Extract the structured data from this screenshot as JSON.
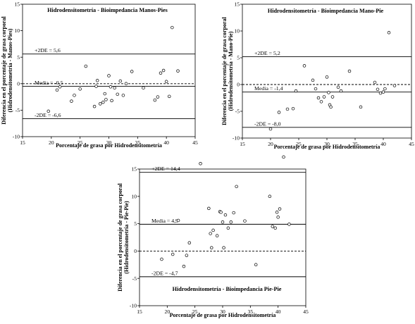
{
  "chart_data": [
    {
      "type": "scatter",
      "title": "Hidrodensitometría - Bioimpedancia Manos-Pies",
      "xlabel": "Porcentaje de grasa por Hidrodensitometría",
      "ylabel": "Diferencia en el porcentaje de grasa corporal",
      "ylabel_sub": "(Hidrodensitometría - Manos-Pies)",
      "xlim": [
        15,
        45
      ],
      "ylim": [
        -10,
        15
      ],
      "xticks": [
        "15",
        "20",
        "25",
        "30",
        "35",
        "40",
        "45"
      ],
      "yticks": [
        "-10",
        "-5",
        "0",
        "5",
        "10",
        "15"
      ],
      "lines": {
        "upper": 5.6,
        "mean": -0.5,
        "lower": -6.6,
        "zero": 0
      },
      "labels": {
        "upper": "+2DE = 5,6",
        "mean": "Media = -0,5",
        "lower": "-2DE = -6,6"
      },
      "points": [
        [
          19.5,
          -5.2
        ],
        [
          21,
          -1.2
        ],
        [
          21.5,
          -0.6
        ],
        [
          23.5,
          -3.3
        ],
        [
          24,
          -2.2
        ],
        [
          25,
          -1
        ],
        [
          26,
          3.3
        ],
        [
          27.5,
          -4.3
        ],
        [
          27.8,
          -0.5
        ],
        [
          28,
          0.6
        ],
        [
          28.5,
          -3.8
        ],
        [
          29,
          -3.5
        ],
        [
          29.3,
          -1.9
        ],
        [
          29.5,
          -3
        ],
        [
          30,
          1.5
        ],
        [
          30.3,
          -0.6
        ],
        [
          30.5,
          -3.2
        ],
        [
          31,
          -0.8
        ],
        [
          31.5,
          -2
        ],
        [
          32,
          0.5
        ],
        [
          32.5,
          -2.2
        ],
        [
          33,
          0
        ],
        [
          34,
          2.3
        ],
        [
          36,
          -0.8
        ],
        [
          38,
          -3.1
        ],
        [
          38.5,
          -2.5
        ],
        [
          39,
          2
        ],
        [
          39.5,
          2.5
        ],
        [
          40,
          0.4
        ],
        [
          40.5,
          -2.4
        ],
        [
          41,
          10.6
        ],
        [
          42,
          2.4
        ]
      ]
    },
    {
      "type": "scatter",
      "title": "Hidrodensitometría - Bioimpedancia Mano-Pie",
      "xlabel": "Porcentaje de grasa por Hidrodensitometría",
      "ylabel": "Diferencia en el porcentaje de grasa corporal",
      "ylabel_sub": "(Hidrodensitometría - Mano-Pie)",
      "xlim": [
        15,
        45
      ],
      "ylim": [
        -10,
        15
      ],
      "xticks": [
        "15",
        "20",
        "25",
        "30",
        "35",
        "40",
        "45"
      ],
      "yticks": [
        "-10",
        "-5",
        "0",
        "5",
        "10",
        "15"
      ],
      "lines": {
        "upper": 5.2,
        "mean": -1.4,
        "lower": -8.0,
        "zero": 0
      },
      "labels": {
        "upper": "+2DE = 5,2",
        "mean": "Media = -1,4",
        "lower": "-2DE = -8,0"
      },
      "points": [
        [
          20,
          -8.3
        ],
        [
          21.5,
          -5.2
        ],
        [
          23,
          -4.6
        ],
        [
          24,
          -4.5
        ],
        [
          24.5,
          -1.2
        ],
        [
          26,
          3.5
        ],
        [
          27.5,
          0.8
        ],
        [
          28,
          -0.8
        ],
        [
          28.5,
          -2.5
        ],
        [
          29,
          -3.2
        ],
        [
          29.5,
          -2.3
        ],
        [
          30,
          1.4
        ],
        [
          30.3,
          -1.5
        ],
        [
          30.5,
          -3.8
        ],
        [
          30.7,
          -4.2
        ],
        [
          31,
          -2.3
        ],
        [
          32,
          -0.5
        ],
        [
          32.5,
          -1.2
        ],
        [
          34,
          2.5
        ],
        [
          36,
          -4.2
        ],
        [
          38.5,
          0.4
        ],
        [
          39,
          -0.9
        ],
        [
          39.5,
          -1.6
        ],
        [
          40,
          -1.4
        ],
        [
          40.3,
          -0.8
        ],
        [
          41,
          9.7
        ],
        [
          42,
          -0.2
        ]
      ]
    },
    {
      "type": "scatter",
      "title": "Hidrodensitometría - Bioimpedancia Pie-Pie",
      "xlabel": "Porcentaje de grasa por Hidrodensitometría",
      "ylabel": "Diferencia en el porcentaje de grasa corporal",
      "ylabel_sub": "(Hidrodensitometría - Pie-Pie)",
      "xlim": [
        15,
        45
      ],
      "ylim": [
        -10,
        15
      ],
      "xticks": [
        "15",
        "20",
        "25",
        "30",
        "35",
        "40",
        "45"
      ],
      "yticks": [
        "-10",
        "-5",
        "0",
        "5",
        "10",
        "15"
      ],
      "lines": {
        "upper": 14.4,
        "mean": 4.9,
        "lower": -4.7,
        "zero": 0
      },
      "labels": {
        "upper": "+2DE = 14,4",
        "mean": "Media = 4,9",
        "lower": "-2DE = -4,7"
      },
      "points": [
        [
          19,
          -1.5
        ],
        [
          21,
          -0.6
        ],
        [
          22,
          5.6
        ],
        [
          23,
          -2.8
        ],
        [
          23.5,
          -0.8
        ],
        [
          24,
          1.5
        ],
        [
          26,
          16
        ],
        [
          27.5,
          7.8
        ],
        [
          27.8,
          3.2
        ],
        [
          28,
          0.6
        ],
        [
          28.3,
          3.8
        ],
        [
          29,
          2.8
        ],
        [
          29.5,
          7.2
        ],
        [
          29.7,
          7.1
        ],
        [
          30,
          5.3
        ],
        [
          30.2,
          0.6
        ],
        [
          30.5,
          6.6
        ],
        [
          31,
          4.2
        ],
        [
          31.5,
          5.3
        ],
        [
          32,
          7
        ],
        [
          32.5,
          11.8
        ],
        [
          34,
          5.5
        ],
        [
          36,
          -2.5
        ],
        [
          38.5,
          10
        ],
        [
          39,
          4.5
        ],
        [
          39.5,
          4.2
        ],
        [
          39.8,
          7.1
        ],
        [
          40,
          6.2
        ],
        [
          40.3,
          7.7
        ],
        [
          41,
          17.2
        ],
        [
          42,
          4.9
        ]
      ]
    }
  ]
}
